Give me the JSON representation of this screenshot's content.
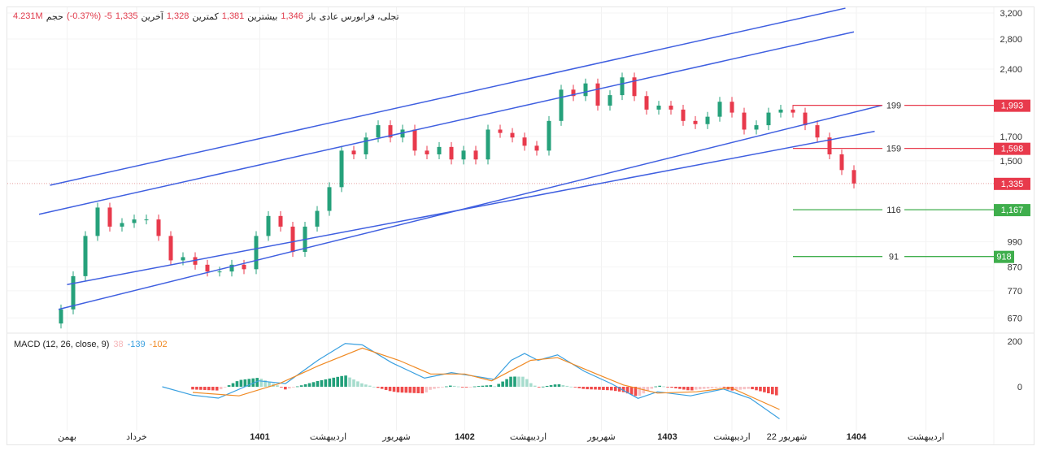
{
  "legend": {
    "symbol": "تجلی، فرابورس عادی",
    "open_label": "باز",
    "open": "1,346",
    "high_label": "بیشترین",
    "high": "1,381",
    "low_label": "کمترین",
    "low": "1,328",
    "last_label": "آخرین",
    "last": "1,335",
    "change": "-5",
    "change_pct": "(-0.37%)",
    "volume_label": "حجم",
    "volume": "4.231M"
  },
  "colors": {
    "up": "#26a17b",
    "down": "#e83a4c",
    "channel": "#3f5fe0",
    "resistance": "#e83a4c",
    "support": "#3fae4c",
    "macd": "#3aa0e0",
    "signal": "#f08a24"
  },
  "chart_data": [
    {
      "type": "candlestick",
      "scale": "log",
      "yticks": [
        3200,
        2800,
        2400,
        1700,
        1500,
        990,
        870,
        770,
        670
      ],
      "closes": [
        700,
        830,
        1020,
        1180,
        1070,
        1090,
        1110,
        1110,
        1020,
        900,
        915,
        880,
        850,
        850,
        880,
        860,
        1020,
        1130,
        1070,
        940,
        1070,
        1160,
        1310,
        1580,
        1550,
        1690,
        1800,
        1690,
        1760,
        1580,
        1550,
        1610,
        1510,
        1580,
        1510,
        1760,
        1730,
        1690,
        1620,
        1580,
        1840,
        2160,
        2090,
        2230,
        1990,
        2100,
        2300,
        2090,
        1950,
        1990,
        1950,
        1840,
        1810,
        1880,
        2030,
        1920,
        1760,
        1800,
        1920,
        1950,
        1920,
        1800,
        1690,
        1550,
        1430,
        1335
      ],
      "last_price": "1,335",
      "horizontal_levels": [
        {
          "label": "199",
          "price": "1,993",
          "value": 1993,
          "kind": "resistance"
        },
        {
          "label": "159",
          "price": "1,598",
          "value": 1598,
          "kind": "resistance"
        },
        {
          "label": "116",
          "price": "1,167",
          "value": 1167,
          "kind": "support"
        },
        {
          "label": "91",
          "price": "918",
          "value": 918,
          "kind": "support"
        }
      ],
      "trendlines": [
        {
          "from": [
            -0.9,
            1323
          ],
          "to": [
            64.3,
            3280
          ]
        },
        {
          "from": [
            -1.8,
            1140
          ],
          "to": [
            65,
            2905
          ]
        },
        {
          "from": [
            0.5,
            795
          ],
          "to": [
            66.7,
            1744
          ]
        },
        {
          "from": [
            -0.2,
            700
          ],
          "to": [
            67.3,
            1993
          ]
        }
      ]
    },
    {
      "type": "line",
      "title": "MACD (12, 26, close, 9)",
      "values_shown": {
        "histogram": "38",
        "macd": "-139",
        "signal": "-102"
      },
      "yticks": [
        200,
        0
      ],
      "macd": [
        [
          8.3,
          0
        ],
        [
          10.8,
          -37
        ],
        [
          12.9,
          -50
        ],
        [
          16.2,
          26
        ],
        [
          18.4,
          14
        ],
        [
          21.1,
          118
        ],
        [
          23.3,
          190
        ],
        [
          24.7,
          184
        ],
        [
          27.1,
          106
        ],
        [
          29.8,
          38
        ],
        [
          32,
          62
        ],
        [
          34.2,
          44
        ],
        [
          35.5,
          32
        ],
        [
          36.9,
          116
        ],
        [
          38,
          146
        ],
        [
          39.1,
          116
        ],
        [
          40.7,
          140
        ],
        [
          42.9,
          68
        ],
        [
          45.1,
          14
        ],
        [
          47.3,
          -51
        ],
        [
          48.9,
          -22
        ],
        [
          51.6,
          -40
        ],
        [
          54.3,
          -10
        ],
        [
          56.5,
          -51
        ],
        [
          58.9,
          -141
        ]
      ],
      "signal": [
        [
          10.8,
          -25
        ],
        [
          14.6,
          -40
        ],
        [
          17.9,
          14
        ],
        [
          21.1,
          92
        ],
        [
          24.7,
          170
        ],
        [
          27.7,
          116
        ],
        [
          30.3,
          56
        ],
        [
          33.1,
          56
        ],
        [
          35.3,
          26
        ],
        [
          38.5,
          116
        ],
        [
          40.7,
          128
        ],
        [
          43.9,
          56
        ],
        [
          46.1,
          8
        ],
        [
          48.9,
          -28
        ],
        [
          52.1,
          -22
        ],
        [
          54.9,
          -4
        ],
        [
          58.9,
          -100
        ]
      ]
    }
  ],
  "time_axis": [
    {
      "label": "بهمن",
      "bar": 0.5,
      "bold": false
    },
    {
      "label": "خرداد",
      "bar": 6.2,
      "bold": false
    },
    {
      "label": "1401",
      "bar": 16.3,
      "bold": true
    },
    {
      "label": "اردیبهشت",
      "bar": 21.9,
      "bold": false
    },
    {
      "label": "شهریور",
      "bar": 27.5,
      "bold": false
    },
    {
      "label": "1402",
      "bar": 33.1,
      "bold": true
    },
    {
      "label": "اردیبهشت",
      "bar": 38.3,
      "bold": false
    },
    {
      "label": "شهریور",
      "bar": 44.3,
      "bold": false
    },
    {
      "label": "1403",
      "bar": 49.7,
      "bold": true
    },
    {
      "label": "اردیبهشت",
      "bar": 55,
      "bold": false
    },
    {
      "label": "22 شهریور",
      "bar": 59.5,
      "bold": false
    },
    {
      "label": "1404",
      "bar": 65.2,
      "bold": true
    },
    {
      "label": "اردیبهشت",
      "bar": 70.9,
      "bold": false
    }
  ]
}
